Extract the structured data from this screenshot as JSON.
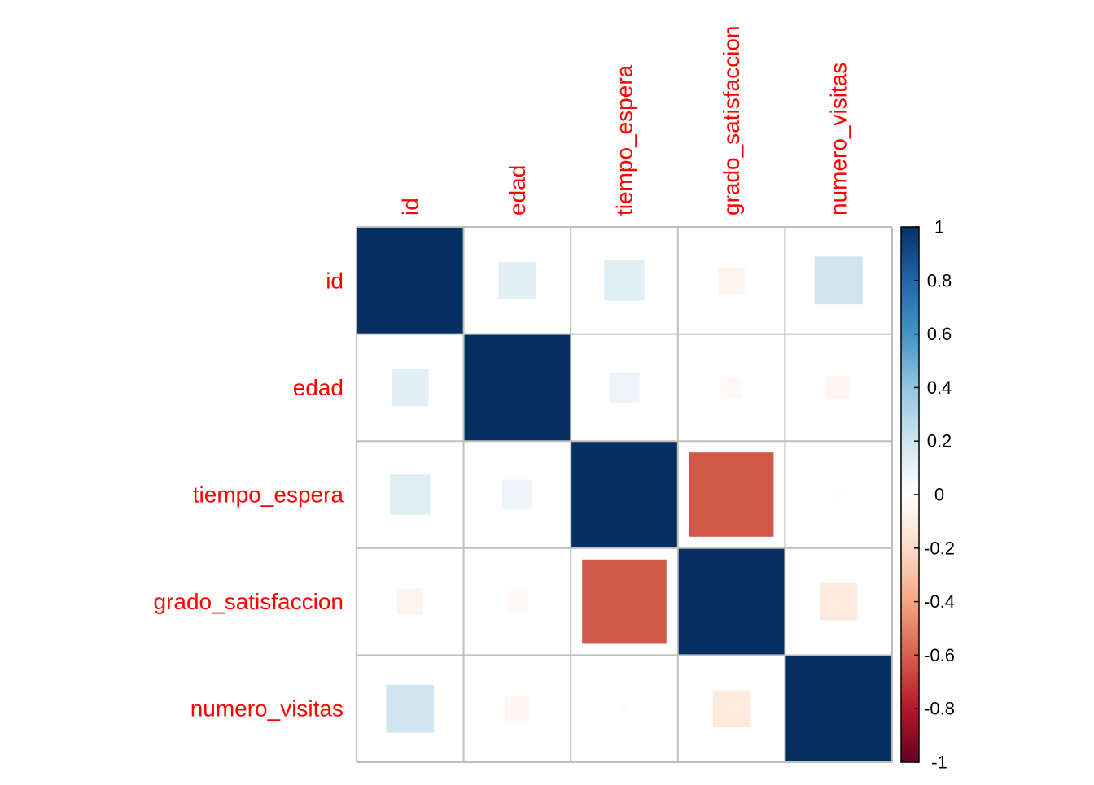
{
  "chart_data": {
    "type": "heatmap",
    "subtype": "correlation-square",
    "variables": [
      "id",
      "edad",
      "tiempo_espera",
      "grado_satisfaccion",
      "numero_visitas"
    ],
    "matrix": [
      [
        1.0,
        0.12,
        0.14,
        -0.06,
        0.2
      ],
      [
        0.12,
        1.0,
        0.08,
        -0.04,
        -0.05
      ],
      [
        0.14,
        0.08,
        1.0,
        -0.62,
        -0.01
      ],
      [
        -0.06,
        -0.04,
        -0.62,
        1.0,
        -0.12
      ],
      [
        0.2,
        -0.05,
        -0.01,
        -0.12,
        1.0
      ]
    ],
    "label_color": "#ff0000",
    "grid_color": "#bebebe",
    "colorbar": {
      "range": [
        -1,
        1
      ],
      "ticks": [
        "1",
        "0.8",
        "0.6",
        "0.4",
        "0.2",
        "0",
        "-0.2",
        "-0.4",
        "-0.6",
        "-0.8",
        "-1"
      ],
      "palette": [
        "#67001F",
        "#B2182B",
        "#D6604D",
        "#F4A582",
        "#FDDBC7",
        "#FFFFFF",
        "#D1E5F0",
        "#92C5DE",
        "#4393C3",
        "#2166AC",
        "#053061"
      ]
    }
  }
}
